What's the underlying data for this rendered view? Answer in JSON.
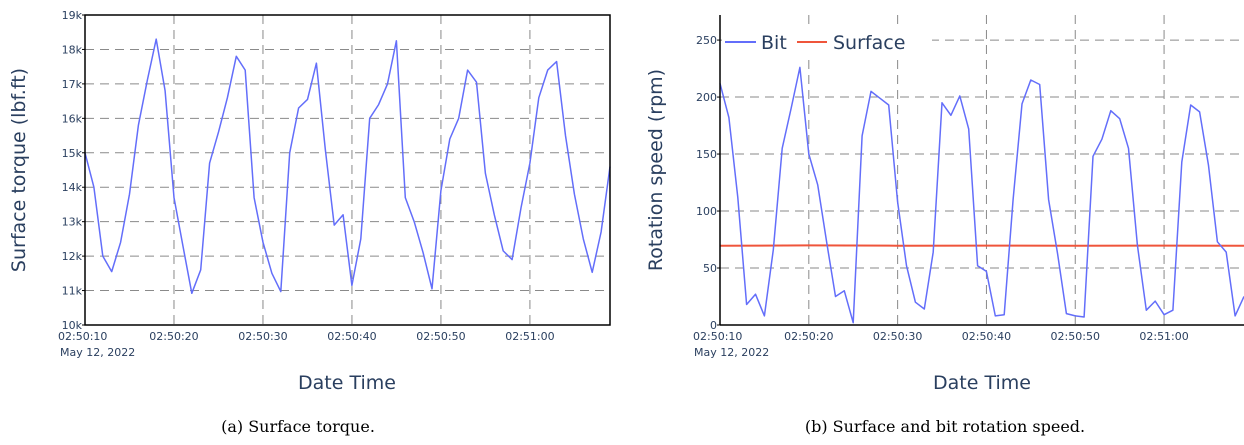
{
  "chart_data": [
    {
      "type": "line",
      "caption": "(a) Surface torque.",
      "xlabel": "Date Time",
      "ylabel": "Surface torque (lbf.ft)",
      "x_ticks": [
        "02:50:10",
        "02:50:20",
        "02:50:30",
        "02:50:40",
        "02:50:50",
        "02:51:00"
      ],
      "x_tick_seconds": [
        10,
        20,
        30,
        40,
        50,
        60
      ],
      "x_date_label": "May 12, 2022",
      "xlim": [
        10,
        69
      ],
      "y_ticks": [
        10000,
        11000,
        12000,
        13000,
        14000,
        15000,
        16000,
        17000,
        18000,
        19000
      ],
      "y_tick_labels": [
        "10k",
        "11k",
        "12k",
        "13k",
        "14k",
        "15k",
        "16k",
        "17k",
        "18k",
        "19k"
      ],
      "ylim": [
        10000,
        19000
      ],
      "grid": true,
      "series": [
        {
          "color": "#636efa",
          "x": [
            10,
            11,
            12,
            13,
            14,
            15,
            16,
            17,
            18,
            19,
            20,
            21,
            22,
            23,
            24,
            25,
            26,
            27,
            28,
            29,
            30,
            31,
            32,
            33,
            34,
            35,
            36,
            37,
            38,
            39,
            40,
            41,
            42,
            43,
            44,
            45,
            46,
            47,
            48,
            49,
            50,
            51,
            52,
            53,
            54,
            55,
            56,
            57,
            58,
            59,
            60,
            61,
            62,
            63,
            64,
            65,
            66,
            67,
            68,
            69
          ],
          "values": [
            15000,
            14000,
            12000,
            11550,
            12400,
            13800,
            15800,
            17100,
            18300,
            16800,
            13700,
            12300,
            10920,
            11600,
            14700,
            15600,
            16600,
            17800,
            17400,
            13700,
            12400,
            11500,
            10970,
            15000,
            16300,
            16550,
            17600,
            15100,
            12900,
            13200,
            11150,
            12500,
            16000,
            16400,
            17000,
            18250,
            13700,
            13000,
            12100,
            11050,
            13900,
            15400,
            16000,
            17400,
            17050,
            14400,
            13200,
            12150,
            11900,
            13400,
            14700,
            16600,
            17400,
            17650,
            15500,
            13800,
            12500,
            11530,
            12700,
            14600
          ]
        }
      ]
    },
    {
      "type": "line",
      "caption": "(b) Surface and bit rotation speed.",
      "xlabel": "Date Time",
      "ylabel": "Rotation speed (rpm)",
      "x_ticks": [
        "02:50:10",
        "02:50:20",
        "02:50:30",
        "02:50:40",
        "02:50:50",
        "02:51:00"
      ],
      "x_tick_seconds": [
        10,
        20,
        30,
        40,
        50,
        60
      ],
      "x_date_label": "May 12, 2022",
      "xlim": [
        10,
        69
      ],
      "y_ticks": [
        0,
        50,
        100,
        150,
        200,
        250
      ],
      "y_tick_labels": [
        "0",
        "50",
        "100",
        "150",
        "200",
        "250"
      ],
      "ylim": [
        0,
        272
      ],
      "grid": true,
      "legend": "top-left",
      "series": [
        {
          "name": "Bit",
          "color": "#636efa",
          "x": [
            10,
            11,
            12,
            13,
            14,
            15,
            16,
            17,
            18,
            19,
            20,
            21,
            22,
            23,
            24,
            25,
            26,
            27,
            28,
            29,
            30,
            31,
            32,
            33,
            34,
            35,
            36,
            37,
            38,
            39,
            40,
            41,
            42,
            43,
            44,
            45,
            46,
            47,
            48,
            49,
            50,
            51,
            52,
            53,
            54,
            55,
            56,
            57,
            58,
            59,
            60,
            61,
            62,
            63,
            64,
            65,
            66,
            67,
            68,
            69
          ],
          "values": [
            212,
            182,
            112,
            18,
            27,
            8,
            66,
            155,
            190,
            226,
            150,
            123,
            73,
            25,
            30,
            2,
            166,
            205,
            199,
            193,
            108,
            52,
            20,
            14,
            64,
            195,
            184,
            201,
            172,
            52,
            47,
            8,
            9,
            110,
            194,
            215,
            211,
            110,
            63,
            10,
            8,
            7,
            148,
            163,
            188,
            181,
            155,
            70,
            13,
            21,
            9,
            13,
            143,
            193,
            187,
            140,
            73,
            64,
            8,
            25
          ],
          "line_width": 1.5
        },
        {
          "name": "Surface",
          "color": "#ef553b",
          "x": [
            10,
            20,
            30,
            40,
            50,
            60,
            69
          ],
          "values": [
            69.5,
            69.8,
            69.6,
            69.7,
            69.5,
            69.7,
            69.6
          ],
          "line_width": 2
        }
      ]
    }
  ]
}
